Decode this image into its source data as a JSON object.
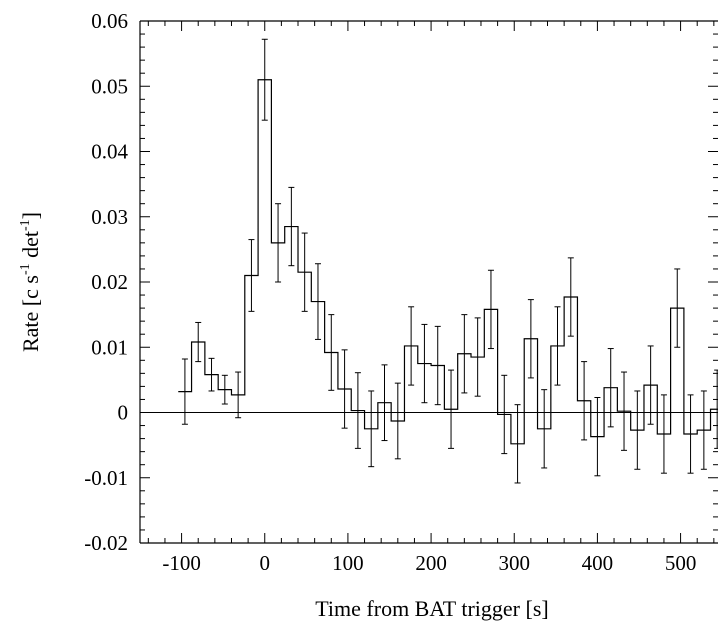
{
  "chart_data": {
    "type": "line",
    "title": "",
    "xlabel": "Time from BAT trigger [s]",
    "ylabel": "Rate [c s",
    "ylabel_parts": [
      "Rate [c s",
      "-1",
      " det",
      "-1",
      "]"
    ],
    "xlim": [
      -150,
      545
    ],
    "ylim": [
      -0.02,
      0.06
    ],
    "xticks": [
      -100,
      0,
      100,
      200,
      300,
      400,
      500
    ],
    "xtick_labels": [
      "-100",
      "0",
      "100",
      "200",
      "300",
      "400",
      "500"
    ],
    "yticks": [
      -0.02,
      -0.01,
      0,
      0.01,
      0.02,
      0.03,
      0.04,
      0.05,
      0.06
    ],
    "ytick_labels": [
      "-0.02",
      "-0.01",
      "0",
      "0.01",
      "0.02",
      "0.03",
      "0.04",
      "0.05",
      "0.06"
    ],
    "grid": false,
    "zero_line": true,
    "bin_width": 16,
    "series": [
      {
        "style": "histogram-step-with-errorbars",
        "x": [
          -96,
          -80,
          -64,
          -48,
          -32,
          -16,
          0,
          16,
          32,
          48,
          64,
          80,
          96,
          112,
          128,
          144,
          160,
          176,
          192,
          208,
          224,
          240,
          256,
          272,
          288,
          304,
          320,
          336,
          352,
          368,
          384,
          400,
          416,
          432,
          448,
          464,
          480,
          496,
          512,
          528,
          544
        ],
        "y": [
          0.0032,
          0.0108,
          0.0058,
          0.0035,
          0.0027,
          0.021,
          0.051,
          0.026,
          0.0285,
          0.0215,
          0.017,
          0.0092,
          0.0036,
          0.0003,
          -0.0025,
          0.0015,
          -0.0013,
          0.0102,
          0.0075,
          0.0072,
          0.0005,
          0.009,
          0.0085,
          0.0158,
          -0.0003,
          -0.0048,
          0.0113,
          -0.0025,
          0.0102,
          0.0177,
          0.0018,
          -0.0037,
          0.0038,
          0.0002,
          -0.0027,
          0.0042,
          -0.0033,
          0.016,
          -0.0033,
          -0.0027,
          0.0005
        ],
        "yerr": [
          0.005,
          0.003,
          0.0025,
          0.0022,
          0.0035,
          0.0055,
          0.0062,
          0.006,
          0.006,
          0.006,
          0.0058,
          0.0058,
          0.006,
          0.0058,
          0.0058,
          0.0058,
          0.0058,
          0.006,
          0.006,
          0.006,
          0.006,
          0.006,
          0.006,
          0.006,
          0.006,
          0.006,
          0.006,
          0.006,
          0.006,
          0.006,
          0.006,
          0.006,
          0.006,
          0.006,
          0.006,
          0.006,
          0.006,
          0.006,
          0.006,
          0.006,
          0.006
        ]
      }
    ]
  }
}
